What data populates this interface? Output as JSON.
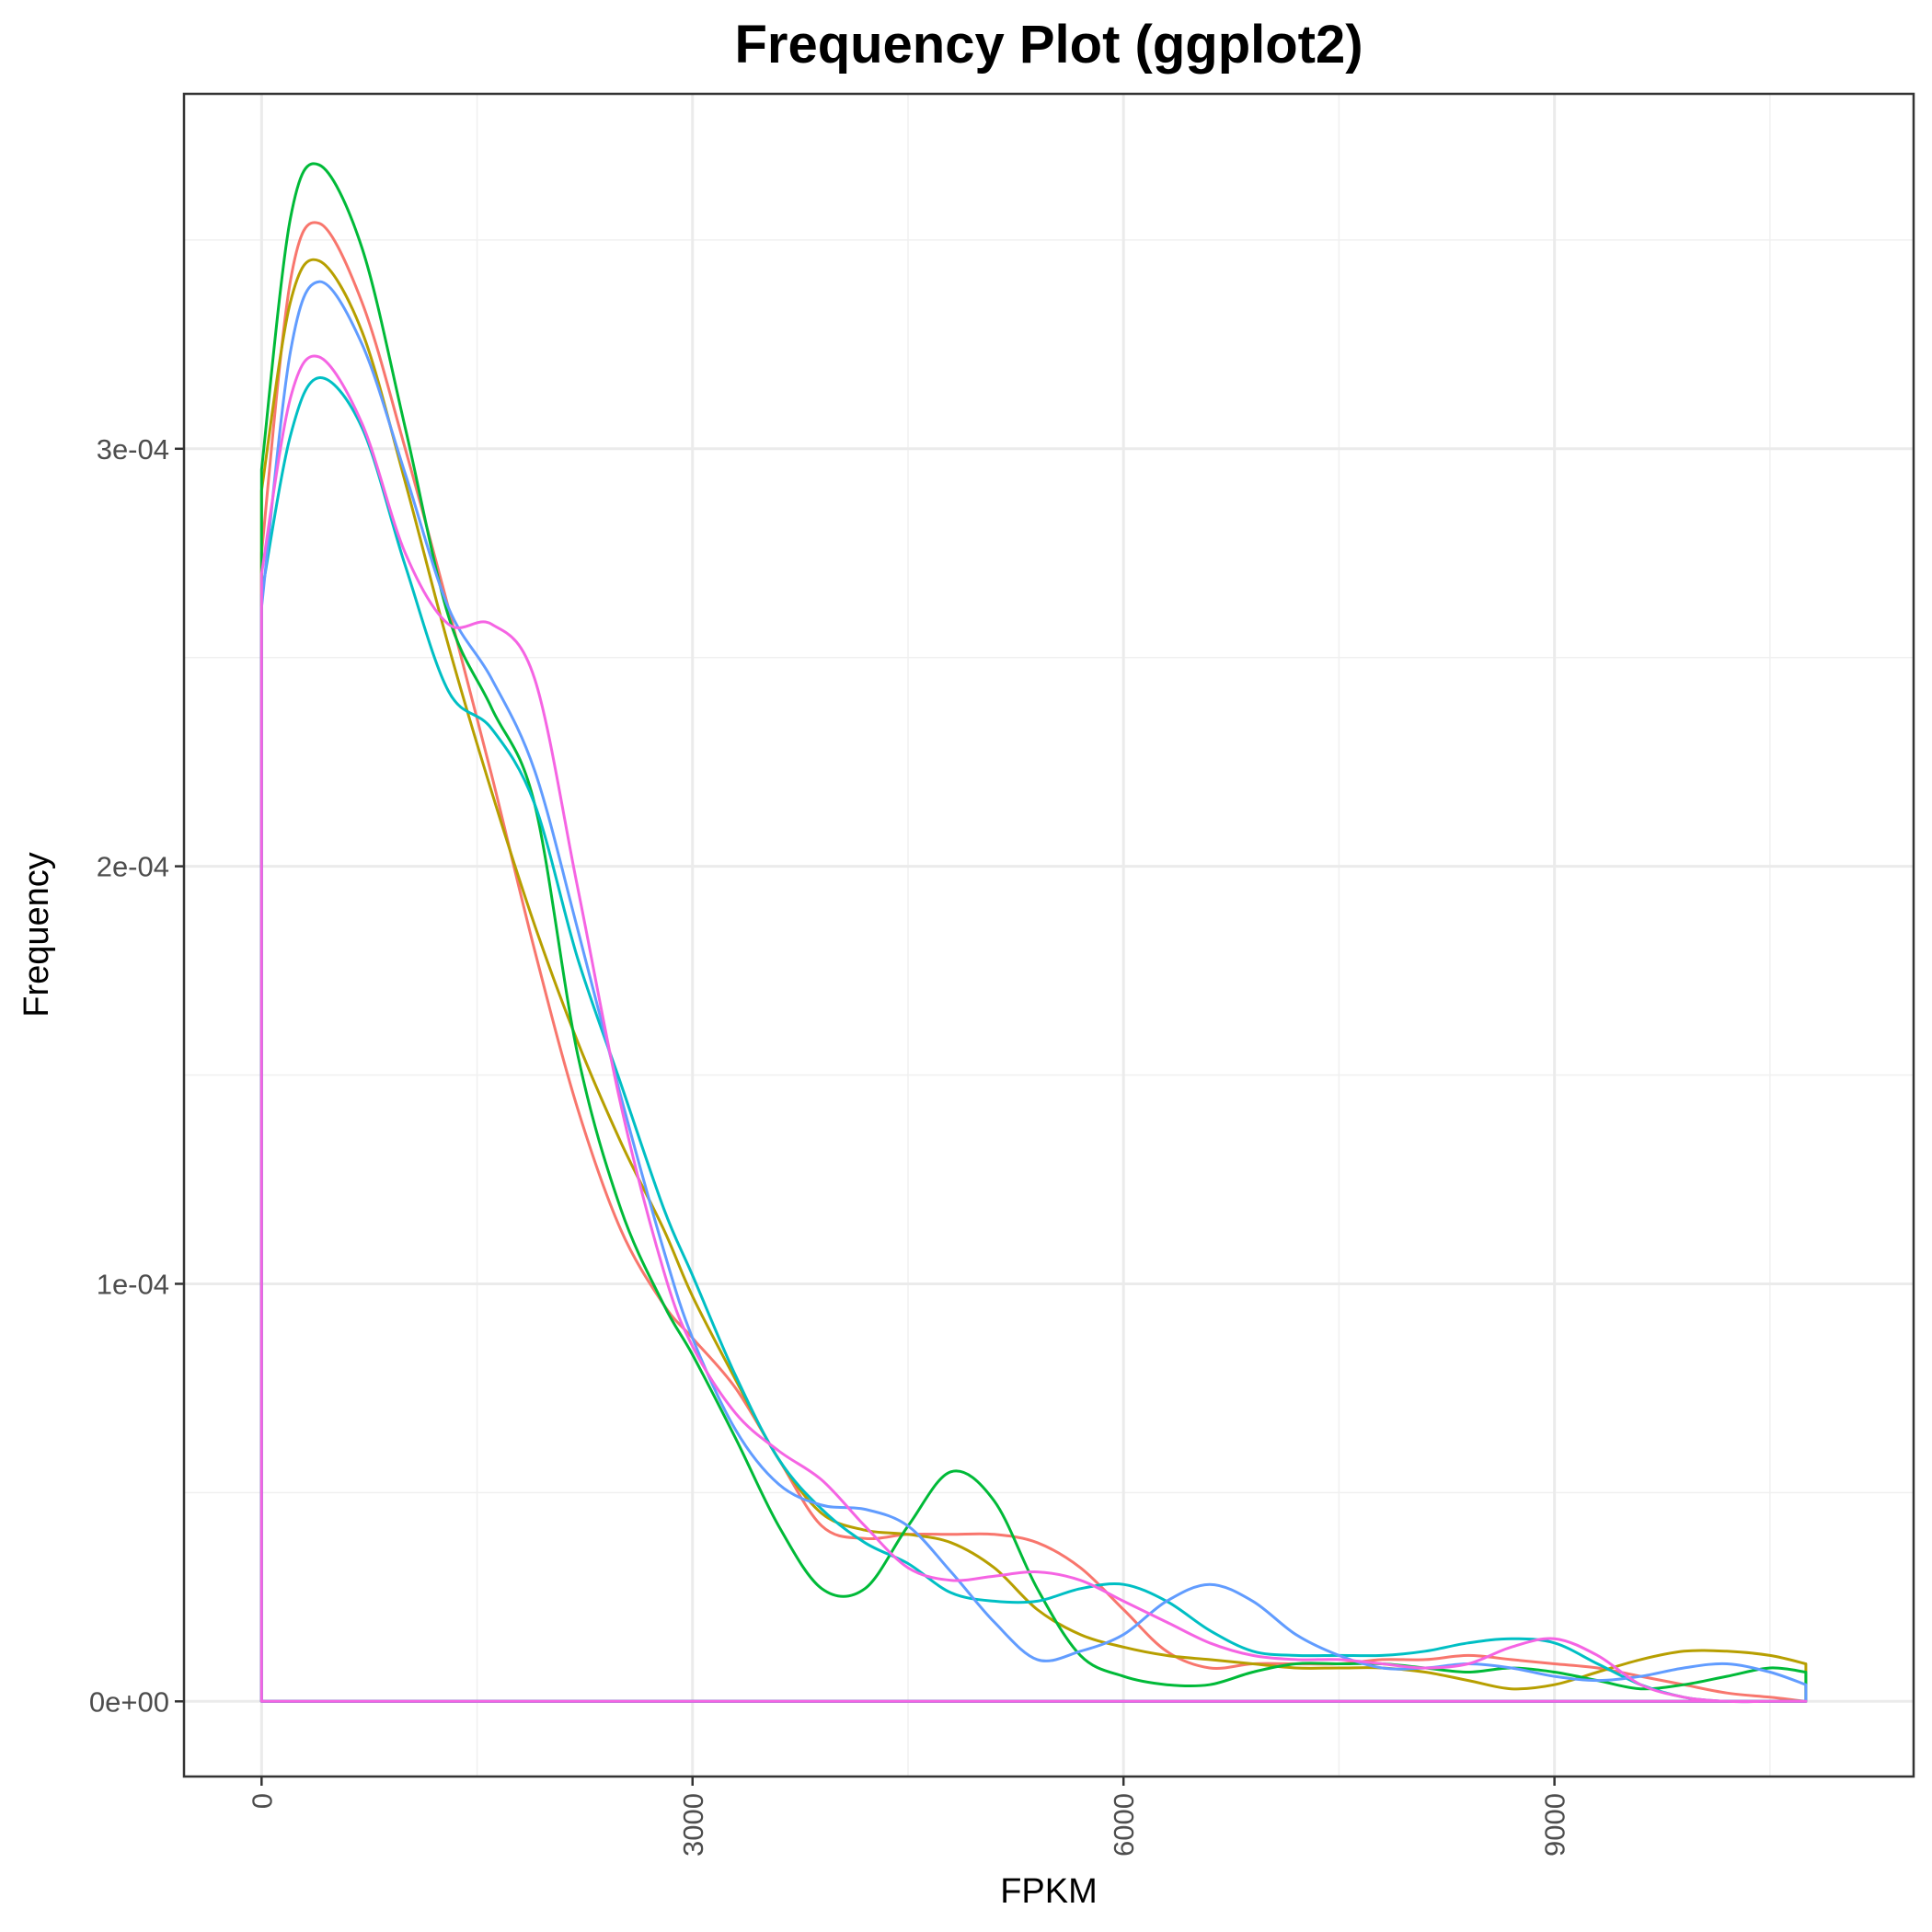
{
  "chart_data": {
    "type": "line",
    "title": "Frequency Plot (ggplot2)",
    "xlabel": "FPKM",
    "ylabel": "Frequency",
    "xlim": [
      -540,
      11500
    ],
    "ylim": [
      -1.8e-05,
      0.000385
    ],
    "x_ticks": [
      0,
      3000,
      6000,
      9000
    ],
    "x_tick_labels": [
      "0",
      "3000",
      "6000",
      "9000"
    ],
    "y_ticks": [
      0,
      0.0001,
      0.0002,
      0.0003
    ],
    "y_tick_labels": [
      "0e+00",
      "1e-04",
      "2e-04",
      "3e-04"
    ],
    "grid": true,
    "legend": "none",
    "x": [
      0,
      200,
      400,
      700,
      1000,
      1300,
      1600,
      1900,
      2200,
      2500,
      2800,
      3000,
      3300,
      3600,
      3900,
      4200,
      4500,
      4800,
      5100,
      5400,
      5700,
      6000,
      6300,
      6600,
      6900,
      7200,
      7500,
      7800,
      8100,
      8400,
      8700,
      9000,
      9300,
      9600,
      9900,
      10200,
      10500,
      10750
    ],
    "series": [
      {
        "color": "#F8766D",
        "values": [
          0.000275,
          0.00034,
          0.000354,
          0.000335,
          0.0003,
          0.000262,
          0.000222,
          0.00018,
          0.000142,
          0.000113,
          9.5e-05,
          8.7e-05,
          7.5e-05,
          5.8e-05,
          4.2e-05,
          3.9e-05,
          4e-05,
          4e-05,
          4e-05,
          3.8e-05,
          3.2e-05,
          2.2e-05,
          1.2e-05,
          8e-06,
          9e-06,
          9e-06,
          9e-06,
          1e-05,
          1e-05,
          1.1e-05,
          1e-05,
          9e-06,
          8e-06,
          6e-06,
          4e-06,
          2e-06,
          1e-06,
          0
        ]
      },
      {
        "color": "#B79F00",
        "values": [
          0.00029,
          0.000335,
          0.000345,
          0.000328,
          0.000292,
          0.000253,
          0.000218,
          0.000186,
          0.000158,
          0.000134,
          0.000113,
          9.7e-05,
          7.7e-05,
          5.8e-05,
          4.5e-05,
          4.1e-05,
          4e-05,
          3.8e-05,
          3.2e-05,
          2.2e-05,
          1.6e-05,
          1.3e-05,
          1.1e-05,
          1e-05,
          9e-06,
          8e-06,
          8e-06,
          8e-06,
          7e-06,
          5e-06,
          3e-06,
          4e-06,
          7e-06,
          1e-05,
          1.2e-05,
          1.2e-05,
          1.1e-05,
          9e-06
        ]
      },
      {
        "color": "#00BA38",
        "values": [
          0.000295,
          0.000355,
          0.000368,
          0.000348,
          0.000305,
          0.00026,
          0.000238,
          0.000215,
          0.000155,
          0.000118,
          9.5e-05,
          8.3e-05,
          6.3e-05,
          4.2e-05,
          2.7e-05,
          2.7e-05,
          4.2e-05,
          5.5e-05,
          4.8e-05,
          2.7e-05,
          1.1e-05,
          6e-06,
          4e-06,
          4e-06,
          7e-06,
          9e-06,
          9e-06,
          9e-06,
          8e-06,
          7e-06,
          8e-06,
          7e-06,
          5e-06,
          3e-06,
          4e-06,
          6e-06,
          8e-06,
          7e-06
        ]
      },
      {
        "color": "#00BFC4",
        "values": [
          0.000265,
          0.000303,
          0.000317,
          0.000305,
          0.000272,
          0.000242,
          0.000233,
          0.000215,
          0.000178,
          0.000148,
          0.000118,
          0.000102,
          7.8e-05,
          5.8e-05,
          4.6e-05,
          3.8e-05,
          3.3e-05,
          2.6e-05,
          2.4e-05,
          2.4e-05,
          2.7e-05,
          2.8e-05,
          2.4e-05,
          1.7e-05,
          1.2e-05,
          1.1e-05,
          1.1e-05,
          1.1e-05,
          1.2e-05,
          1.4e-05,
          1.5e-05,
          1.4e-05,
          9e-06,
          4e-06,
          1e-06,
          0,
          0,
          0
        ]
      },
      {
        "color": "#619CFF",
        "values": [
          0.000262,
          0.000323,
          0.00034,
          0.000325,
          0.000294,
          0.000262,
          0.000245,
          0.000223,
          0.000185,
          0.000145,
          0.000108,
          8.7e-05,
          6.5e-05,
          5.2e-05,
          4.7e-05,
          4.6e-05,
          4.2e-05,
          3.1e-05,
          1.9e-05,
          1e-05,
          1.2e-05,
          1.6e-05,
          2.4e-05,
          2.8e-05,
          2.4e-05,
          1.6e-05,
          1.1e-05,
          8e-06,
          8e-06,
          9e-06,
          8e-06,
          6e-06,
          5e-06,
          6e-06,
          8e-06,
          9e-06,
          7e-06,
          4e-06
        ]
      },
      {
        "color": "#F564E3",
        "values": [
          0.00027,
          0.000312,
          0.000322,
          0.000306,
          0.000275,
          0.000258,
          0.000258,
          0.000245,
          0.000195,
          0.000143,
          0.000103,
          8.5e-05,
          6.9e-05,
          6e-05,
          5.3e-05,
          4.2e-05,
          3.2e-05,
          2.9e-05,
          3e-05,
          3.1e-05,
          2.9e-05,
          2.4e-05,
          1.9e-05,
          1.4e-05,
          1.1e-05,
          1e-05,
          1e-05,
          9e-06,
          8e-06,
          9e-06,
          1.3e-05,
          1.5e-05,
          1.1e-05,
          4e-06,
          1e-06,
          0,
          0,
          0
        ]
      }
    ]
  }
}
